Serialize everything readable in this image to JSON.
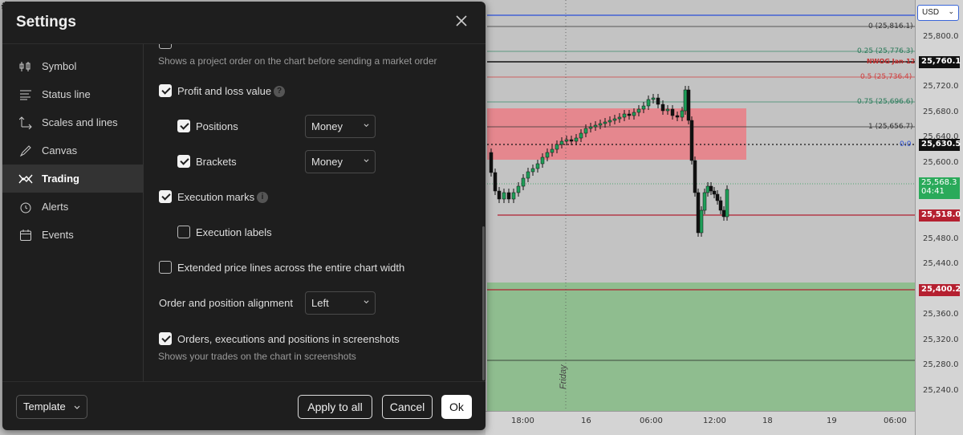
{
  "dialog": {
    "title": "Settings",
    "close_icon": "close-icon",
    "sidebar": {
      "items": [
        {
          "label": "Symbol",
          "icon": "symbol-icon",
          "active": false
        },
        {
          "label": "Status line",
          "icon": "status-line-icon",
          "active": false
        },
        {
          "label": "Scales and lines",
          "icon": "scales-icon",
          "active": false
        },
        {
          "label": "Canvas",
          "icon": "canvas-brush-icon",
          "active": false
        },
        {
          "label": "Trading",
          "icon": "trading-icon",
          "active": true
        },
        {
          "label": "Alerts",
          "icon": "alarm-clock-icon",
          "active": false
        },
        {
          "label": "Events",
          "icon": "calendar-icon",
          "active": false
        }
      ]
    },
    "trading": {
      "project_order_hint": "Shows a project order on the chart before sending a market order",
      "profit_loss": {
        "label": "Profit and loss value",
        "checked": true
      },
      "positions": {
        "label": "Positions",
        "checked": true,
        "select": "Money"
      },
      "brackets": {
        "label": "Brackets",
        "checked": true,
        "select": "Money"
      },
      "execution_marks": {
        "label": "Execution marks",
        "checked": true
      },
      "execution_labels": {
        "label": "Execution labels",
        "checked": false
      },
      "extended_lines": {
        "label": "Extended price lines across the entire chart width",
        "checked": false
      },
      "alignment": {
        "label": "Order and position alignment",
        "select": "Left"
      },
      "screenshots": {
        "label": "Orders, executions and positions in screenshots",
        "checked": true,
        "hint": "Shows your trades on the chart in screenshots"
      }
    },
    "footer": {
      "template": "Template",
      "apply_all": "Apply to all",
      "cancel": "Cancel",
      "ok": "Ok"
    }
  },
  "chart": {
    "currency": "USD",
    "price_labels": [
      "25,800.0",
      "25,720.0",
      "25,680.0",
      "25,600.0",
      "25,480.0",
      "25,440.0",
      "25,360.0",
      "25,320.0",
      "25,280.0",
      "25,240.0"
    ],
    "tags": {
      "nwog": "25,760.1",
      "current": "25,630.5",
      "last": "25,568.3",
      "countdown": "04:41",
      "red1": "25,518.0",
      "red2": "25,400.2",
      "c640": "25,640.0"
    },
    "fib_labels": {
      "f0": "0 (25,816.1)",
      "f025": "0.25 (25,776.3)",
      "nwog": "NWOG Jan-12",
      "f05": "0.5 (25,736.4)",
      "f075": "0.75 (25,696.6)",
      "f1": "1 (25,656.7)",
      "zero": "0:0"
    },
    "time_labels": [
      "18:00",
      "16",
      "06:00",
      "12:00",
      "18",
      "19",
      "06:00"
    ],
    "session_label": "Friday",
    "colors": {
      "red_zone": "#e8898f",
      "green_zone": "#90bf90",
      "up": "#1e9e58",
      "down": "#111111",
      "blue_line": "#2a4fd8"
    }
  }
}
